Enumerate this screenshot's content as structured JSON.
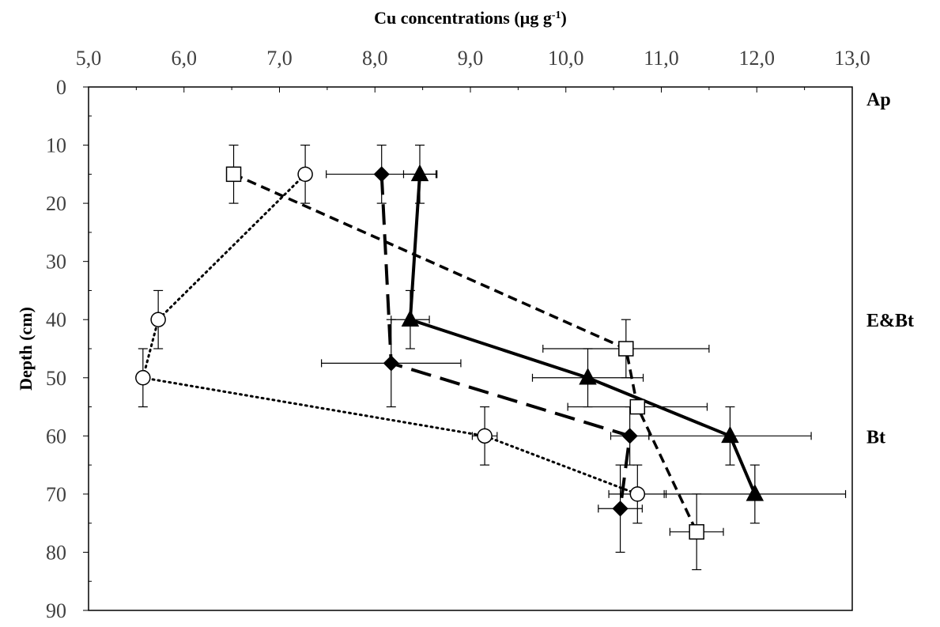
{
  "chart_data": {
    "type": "scatter",
    "xlabel_main": "Cu concentrations (µg g",
    "xlabel_sup": "-1",
    "xlabel_end": ")",
    "ylabel": "Depth (cm)",
    "xlim": [
      5.0,
      13.0
    ],
    "ylim": [
      0,
      90
    ],
    "y_inverted": true,
    "x_axis_position": "top",
    "x_ticks": [
      5.0,
      6.0,
      7.0,
      8.0,
      9.0,
      10.0,
      11.0,
      12.0,
      13.0
    ],
    "x_tick_labels": [
      "5,0",
      "6,0",
      "7,0",
      "8,0",
      "9,0",
      "10,0",
      "11,0",
      "12,0",
      "13,0"
    ],
    "y_ticks": [
      0,
      10,
      20,
      30,
      40,
      50,
      60,
      70,
      80,
      90
    ],
    "y_tick_labels": [
      "0",
      "10",
      "20",
      "30",
      "40",
      "50",
      "60",
      "70",
      "80",
      "90"
    ],
    "grid": false,
    "horizons": [
      {
        "label": "Ap",
        "depth": 2
      },
      {
        "label": "E&Bt",
        "depth": 40
      },
      {
        "label": "Bt",
        "depth": 60
      }
    ],
    "series": [
      {
        "marker": "diamond",
        "marker_fill": "#000000",
        "line": "long-dash",
        "color": "#000000",
        "points": [
          {
            "x": 8.07,
            "y": 15,
            "xerr": 0.58,
            "yerr": 5
          },
          {
            "x": 8.17,
            "y": 47.5,
            "xerr": 0.73,
            "yerr": 7.5
          },
          {
            "x": 10.67,
            "y": 60,
            "xerr": 0.2,
            "yerr": 5
          },
          {
            "x": 10.57,
            "y": 72.5,
            "xerr": 0.23,
            "yerr": 7.5
          }
        ]
      },
      {
        "marker": "triangle",
        "marker_fill": "#000000",
        "line": "solid",
        "color": "#000000",
        "points": [
          {
            "x": 8.47,
            "y": 15,
            "xerr": 0.17,
            "yerr": 5
          },
          {
            "x": 8.37,
            "y": 40,
            "xerr": 0.2,
            "yerr": 5
          },
          {
            "x": 10.23,
            "y": 50,
            "xerr": 0.58,
            "yerr": 5
          },
          {
            "x": 11.72,
            "y": 60,
            "xerr": 0.85,
            "yerr": 5
          },
          {
            "x": 11.98,
            "y": 70,
            "xerr": 0.95,
            "yerr": 5
          }
        ]
      },
      {
        "marker": "square",
        "marker_fill": "#ffffff",
        "line": "short-dash",
        "color": "#000000",
        "points": [
          {
            "x": 6.52,
            "y": 15,
            "xerr": 0.0,
            "yerr": 5
          },
          {
            "x": 10.63,
            "y": 45,
            "xerr": 0.87,
            "yerr": 5
          },
          {
            "x": 10.75,
            "y": 55,
            "xerr": 0.73,
            "yerr": 0
          },
          {
            "x": 11.37,
            "y": 76.5,
            "xerr": 0.28,
            "yerr": 6.5
          }
        ]
      },
      {
        "marker": "circle",
        "marker_fill": "#ffffff",
        "line": "dotted",
        "color": "#000000",
        "points": [
          {
            "x": 7.27,
            "y": 15,
            "xerr": 0.05,
            "yerr": 5
          },
          {
            "x": 5.73,
            "y": 40,
            "xerr": 0.03,
            "yerr": 5
          },
          {
            "x": 5.57,
            "y": 50,
            "xerr": 0.03,
            "yerr": 5
          },
          {
            "x": 9.15,
            "y": 60,
            "xerr": 0.13,
            "yerr": 5
          },
          {
            "x": 10.75,
            "y": 70,
            "xerr": 0.3,
            "yerr": 5
          }
        ]
      }
    ]
  }
}
